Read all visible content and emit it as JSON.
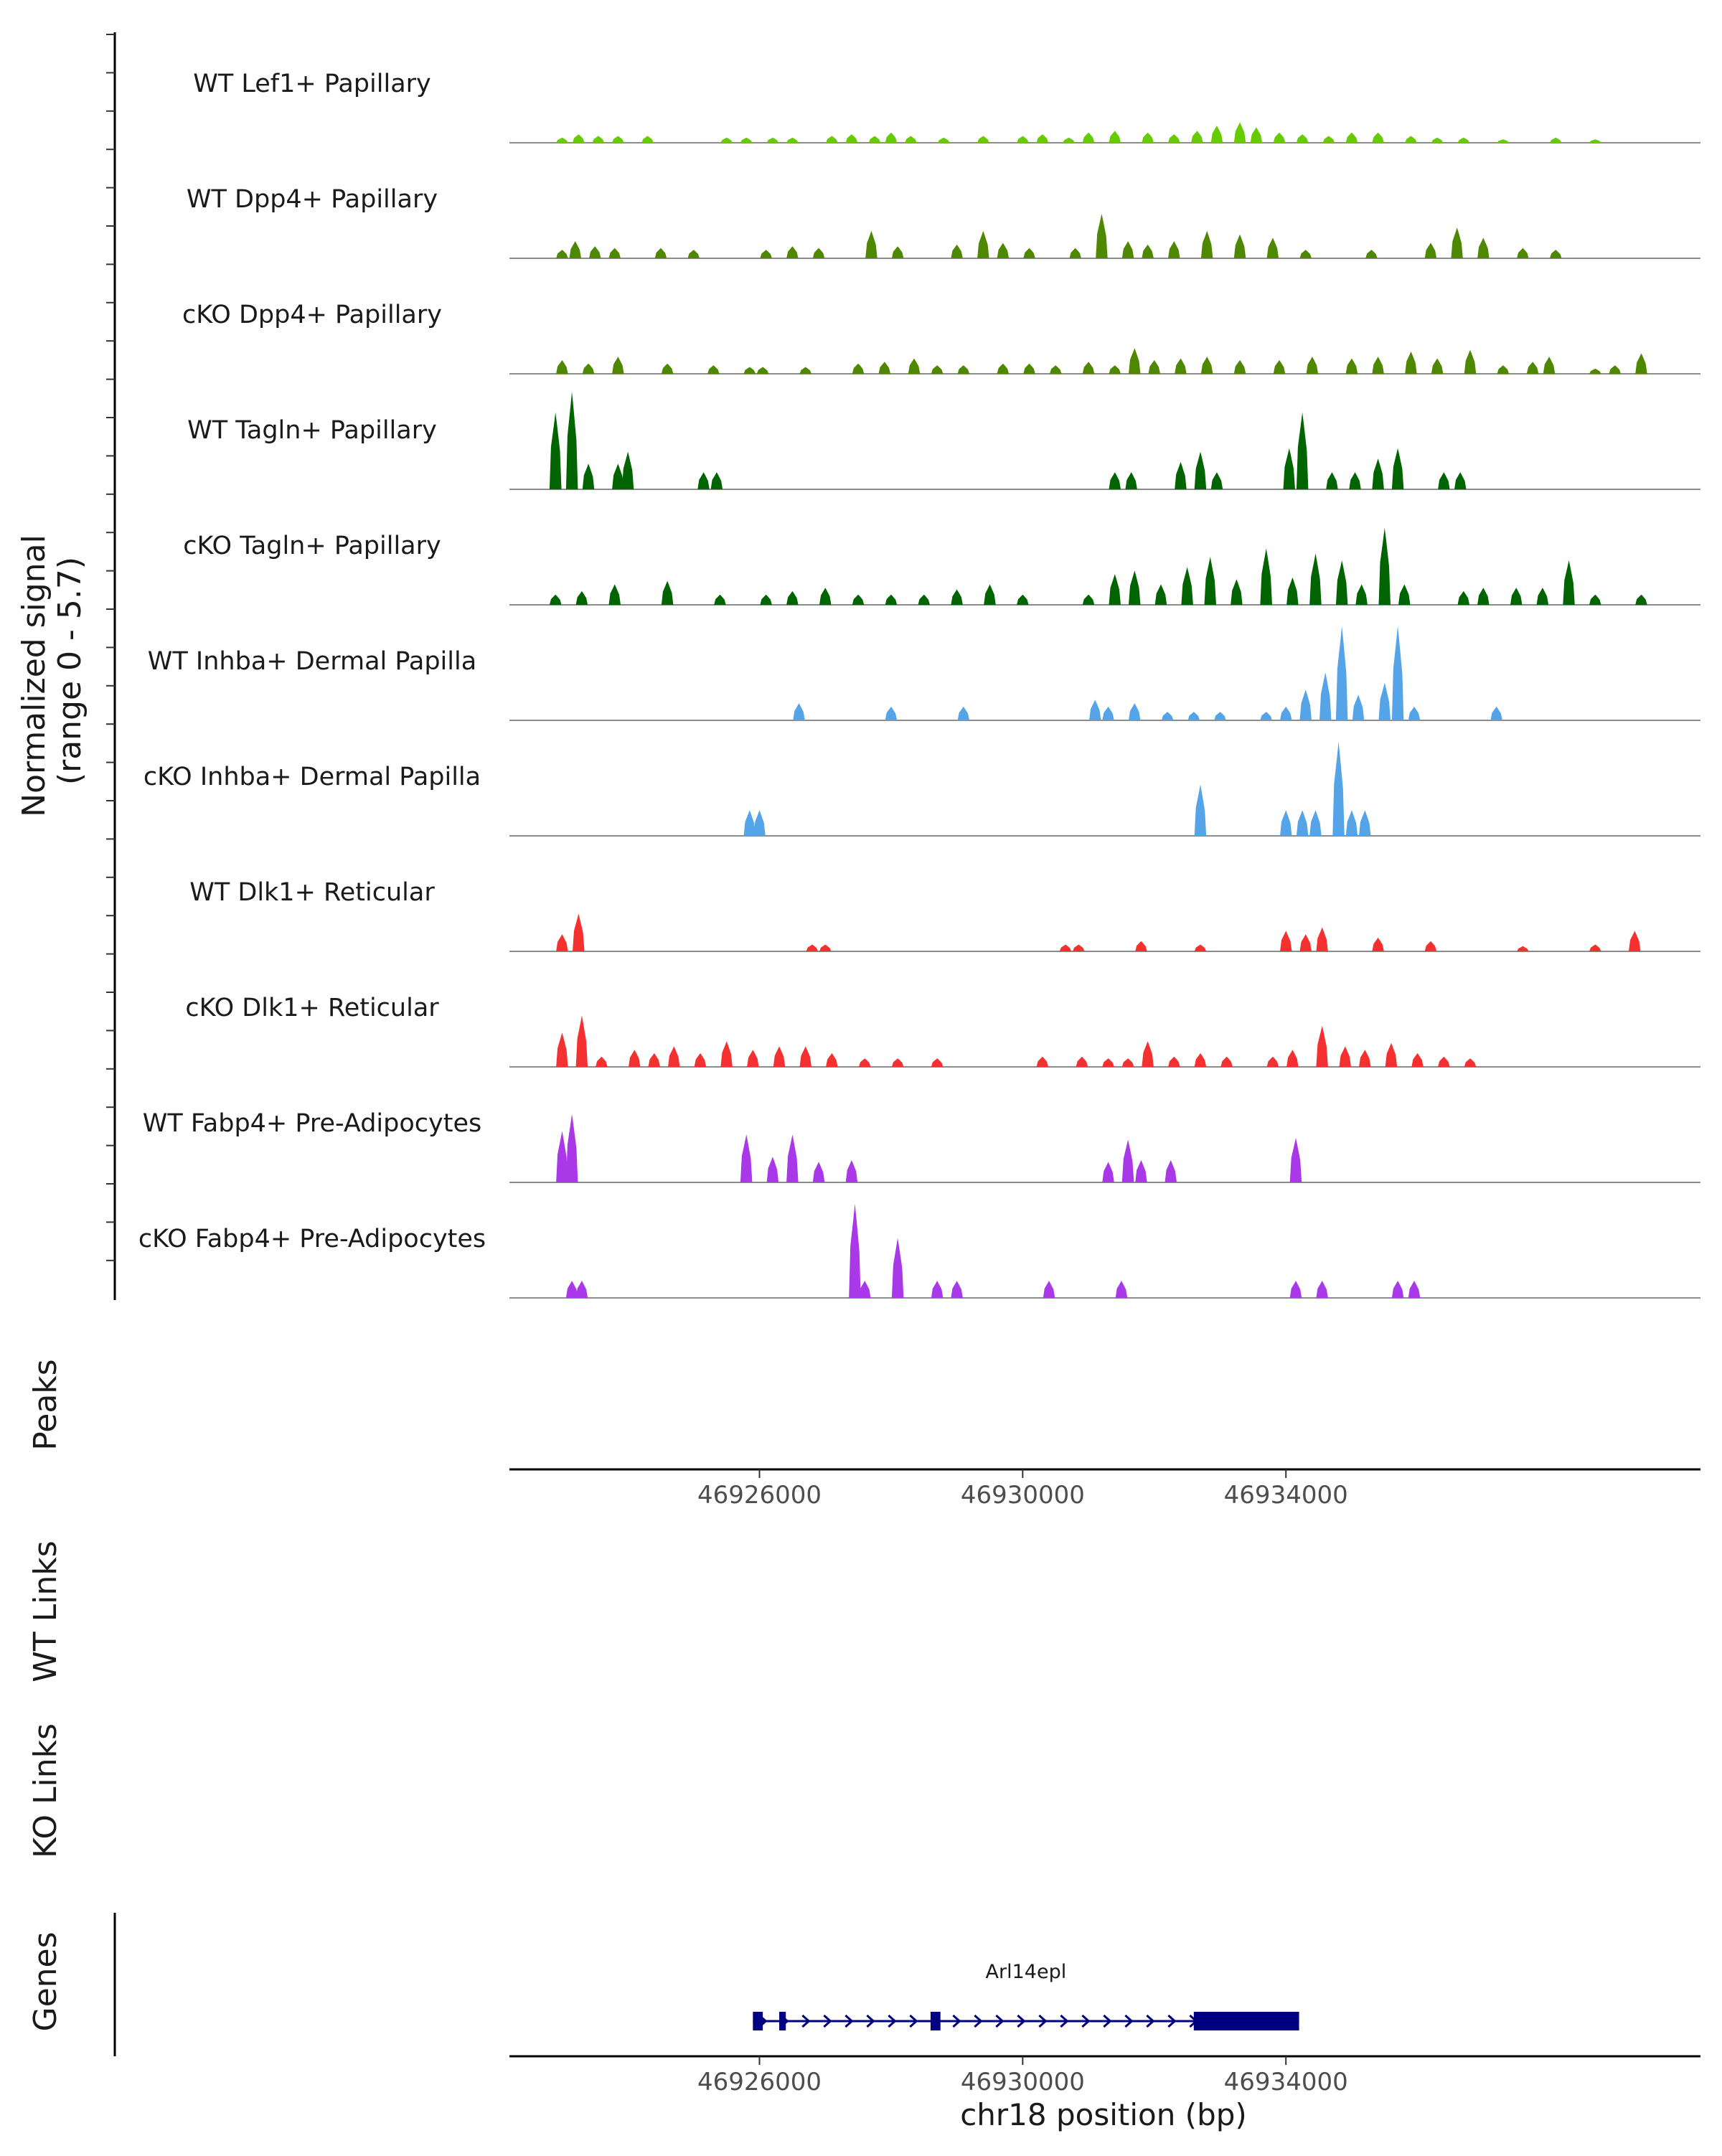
{
  "chart_data": {
    "type": "area",
    "chromosome": "chr18",
    "xlim": [
      46922200,
      46940300
    ],
    "ylim": [
      0,
      5.7
    ],
    "x_ticks": [
      46926000,
      46930000,
      46934000
    ],
    "x_tick_labels": [
      "46926000",
      "46930000",
      "46934000"
    ],
    "xlabel": "chr18 position (bp)",
    "signal_axis_title": "Normalized signal\n(range 0 - 5.7)",
    "side_labels": {
      "peaks": "Peaks",
      "wt_links": "WT Links",
      "ko_links": "KO Links",
      "genes": "Genes"
    },
    "tracks": [
      {
        "name": "WT Lef1+ Papillary",
        "color": "#66CC00",
        "peaks": [
          [
            46923000,
            0.3
          ],
          [
            46923250,
            0.5
          ],
          [
            46923550,
            0.4
          ],
          [
            46923850,
            0.4
          ],
          [
            46924300,
            0.4
          ],
          [
            46925500,
            0.3
          ],
          [
            46925800,
            0.3
          ],
          [
            46926200,
            0.3
          ],
          [
            46926500,
            0.3
          ],
          [
            46927100,
            0.4
          ],
          [
            46927400,
            0.5
          ],
          [
            46927750,
            0.4
          ],
          [
            46928000,
            0.6
          ],
          [
            46928300,
            0.4
          ],
          [
            46928800,
            0.3
          ],
          [
            46929400,
            0.4
          ],
          [
            46930000,
            0.4
          ],
          [
            46930300,
            0.5
          ],
          [
            46930700,
            0.3
          ],
          [
            46931000,
            0.6
          ],
          [
            46931400,
            0.7
          ],
          [
            46931900,
            0.6
          ],
          [
            46932300,
            0.5
          ],
          [
            46932650,
            0.7
          ],
          [
            46932950,
            1.0
          ],
          [
            46933300,
            1.2
          ],
          [
            46933550,
            0.9
          ],
          [
            46933900,
            0.6
          ],
          [
            46934250,
            0.5
          ],
          [
            46934650,
            0.4
          ],
          [
            46935000,
            0.6
          ],
          [
            46935400,
            0.6
          ],
          [
            46935900,
            0.4
          ],
          [
            46936300,
            0.3
          ],
          [
            46936700,
            0.3
          ],
          [
            46937300,
            0.2
          ],
          [
            46938100,
            0.3
          ],
          [
            46938700,
            0.2
          ]
        ]
      },
      {
        "name": "WT Dpp4+ Papillary",
        "color": "#4D8800",
        "peaks": [
          [
            46923000,
            0.5
          ],
          [
            46923200,
            1.0
          ],
          [
            46923500,
            0.7
          ],
          [
            46923800,
            0.6
          ],
          [
            46924500,
            0.6
          ],
          [
            46925000,
            0.5
          ],
          [
            46926100,
            0.5
          ],
          [
            46926500,
            0.7
          ],
          [
            46926900,
            0.6
          ],
          [
            46927700,
            1.6
          ],
          [
            46928100,
            0.7
          ],
          [
            46929000,
            0.8
          ],
          [
            46929400,
            1.6
          ],
          [
            46929700,
            0.9
          ],
          [
            46930100,
            0.6
          ],
          [
            46930800,
            0.6
          ],
          [
            46931200,
            2.6
          ],
          [
            46931600,
            1.0
          ],
          [
            46931900,
            0.8
          ],
          [
            46932300,
            1.0
          ],
          [
            46932800,
            1.6
          ],
          [
            46933300,
            1.4
          ],
          [
            46933800,
            1.2
          ],
          [
            46934300,
            0.5
          ],
          [
            46935300,
            0.5
          ],
          [
            46936200,
            0.9
          ],
          [
            46936600,
            1.8
          ],
          [
            46937000,
            1.2
          ],
          [
            46937600,
            0.6
          ],
          [
            46938100,
            0.5
          ]
        ]
      },
      {
        "name": "cKO Dpp4+ Papillary",
        "color": "#4D8800",
        "peaks": [
          [
            46923000,
            0.8
          ],
          [
            46923400,
            0.6
          ],
          [
            46923850,
            1.0
          ],
          [
            46924600,
            0.6
          ],
          [
            46925300,
            0.5
          ],
          [
            46925850,
            0.4
          ],
          [
            46926050,
            0.4
          ],
          [
            46926700,
            0.4
          ],
          [
            46927500,
            0.6
          ],
          [
            46927900,
            0.7
          ],
          [
            46928350,
            0.9
          ],
          [
            46928700,
            0.5
          ],
          [
            46929100,
            0.5
          ],
          [
            46929700,
            0.6
          ],
          [
            46930100,
            0.6
          ],
          [
            46930500,
            0.5
          ],
          [
            46931000,
            0.7
          ],
          [
            46931400,
            0.5
          ],
          [
            46931700,
            1.5
          ],
          [
            46932000,
            0.8
          ],
          [
            46932400,
            0.9
          ],
          [
            46932800,
            1.0
          ],
          [
            46933300,
            0.8
          ],
          [
            46933900,
            0.8
          ],
          [
            46934400,
            1.0
          ],
          [
            46935000,
            0.9
          ],
          [
            46935400,
            1.0
          ],
          [
            46935900,
            1.3
          ],
          [
            46936300,
            0.9
          ],
          [
            46936800,
            1.4
          ],
          [
            46937300,
            0.5
          ],
          [
            46937750,
            0.7
          ],
          [
            46938000,
            1.0
          ],
          [
            46938700,
            0.3
          ],
          [
            46939000,
            0.5
          ],
          [
            46939400,
            1.2
          ]
        ]
      },
      {
        "name": "WT Tagln+ Papillary",
        "color": "#006400",
        "peaks": [
          [
            46922900,
            4.5
          ],
          [
            46923150,
            5.7
          ],
          [
            46923400,
            1.5
          ],
          [
            46923850,
            1.5
          ],
          [
            46924000,
            2.2
          ],
          [
            46925150,
            1.0
          ],
          [
            46925350,
            1.0
          ],
          [
            46931400,
            1.0
          ],
          [
            46931650,
            1.0
          ],
          [
            46932400,
            1.6
          ],
          [
            46932700,
            2.2
          ],
          [
            46932950,
            1.0
          ],
          [
            46934050,
            2.4
          ],
          [
            46934250,
            4.5
          ],
          [
            46934700,
            1.0
          ],
          [
            46935050,
            1.0
          ],
          [
            46935400,
            1.8
          ],
          [
            46935700,
            2.4
          ],
          [
            46936400,
            1.0
          ],
          [
            46936650,
            1.0
          ]
        ]
      },
      {
        "name": "cKO Tagln+ Papillary",
        "color": "#006400",
        "peaks": [
          [
            46922900,
            0.6
          ],
          [
            46923300,
            0.8
          ],
          [
            46923800,
            1.2
          ],
          [
            46924600,
            1.4
          ],
          [
            46925400,
            0.6
          ],
          [
            46926100,
            0.6
          ],
          [
            46926500,
            0.8
          ],
          [
            46927000,
            1.0
          ],
          [
            46927500,
            0.6
          ],
          [
            46928000,
            0.6
          ],
          [
            46928500,
            0.6
          ],
          [
            46929000,
            0.9
          ],
          [
            46929500,
            1.2
          ],
          [
            46930000,
            0.6
          ],
          [
            46931000,
            0.6
          ],
          [
            46931400,
            1.8
          ],
          [
            46931700,
            2.0
          ],
          [
            46932100,
            1.2
          ],
          [
            46932500,
            2.2
          ],
          [
            46932850,
            2.8
          ],
          [
            46933250,
            1.5
          ],
          [
            46933700,
            3.3
          ],
          [
            46934100,
            1.6
          ],
          [
            46934450,
            3.0
          ],
          [
            46934850,
            2.6
          ],
          [
            46935150,
            1.2
          ],
          [
            46935500,
            4.5
          ],
          [
            46935800,
            1.2
          ],
          [
            46936700,
            0.8
          ],
          [
            46937000,
            1.0
          ],
          [
            46937500,
            1.0
          ],
          [
            46937900,
            1.0
          ],
          [
            46938300,
            2.6
          ],
          [
            46938700,
            0.6
          ],
          [
            46939400,
            0.6
          ]
        ]
      },
      {
        "name": "WT Inhba+ Dermal Papilla",
        "color": "#56A4E8",
        "peaks": [
          [
            46926600,
            1.0
          ],
          [
            46928000,
            0.8
          ],
          [
            46929100,
            0.8
          ],
          [
            46931100,
            1.2
          ],
          [
            46931300,
            0.8
          ],
          [
            46931700,
            1.0
          ],
          [
            46932200,
            0.5
          ],
          [
            46932600,
            0.5
          ],
          [
            46933000,
            0.5
          ],
          [
            46933700,
            0.5
          ],
          [
            46934000,
            0.8
          ],
          [
            46934300,
            1.8
          ],
          [
            46934600,
            2.8
          ],
          [
            46934850,
            5.5
          ],
          [
            46935100,
            1.5
          ],
          [
            46935500,
            2.2
          ],
          [
            46935700,
            5.5
          ],
          [
            46935950,
            0.8
          ],
          [
            46937200,
            0.8
          ]
        ]
      },
      {
        "name": "cKO Inhba+ Dermal Papilla",
        "color": "#56A4E8",
        "peaks": [
          [
            46925850,
            1.5
          ],
          [
            46926000,
            1.5
          ],
          [
            46932700,
            3.0
          ],
          [
            46934000,
            1.5
          ],
          [
            46934250,
            1.5
          ],
          [
            46934450,
            1.5
          ],
          [
            46934800,
            5.5
          ],
          [
            46935000,
            1.5
          ],
          [
            46935200,
            1.5
          ]
        ]
      },
      {
        "name": "WT Dlk1+ Reticular",
        "color": "#F43030",
        "peaks": [
          [
            46923000,
            1.0
          ],
          [
            46923250,
            2.2
          ],
          [
            46926800,
            0.4
          ],
          [
            46927000,
            0.4
          ],
          [
            46930650,
            0.4
          ],
          [
            46930850,
            0.4
          ],
          [
            46931800,
            0.6
          ],
          [
            46932700,
            0.4
          ],
          [
            46934000,
            1.2
          ],
          [
            46934300,
            1.0
          ],
          [
            46934550,
            1.4
          ],
          [
            46935400,
            0.8
          ],
          [
            46936200,
            0.6
          ],
          [
            46937600,
            0.3
          ],
          [
            46938700,
            0.4
          ],
          [
            46939300,
            1.2
          ]
        ]
      },
      {
        "name": "cKO Dlk1+ Reticular",
        "color": "#F43030",
        "peaks": [
          [
            46923000,
            2.0
          ],
          [
            46923300,
            3.0
          ],
          [
            46923600,
            0.6
          ],
          [
            46924100,
            1.0
          ],
          [
            46924400,
            0.8
          ],
          [
            46924700,
            1.2
          ],
          [
            46925100,
            0.8
          ],
          [
            46925500,
            1.5
          ],
          [
            46925900,
            1.0
          ],
          [
            46926300,
            1.2
          ],
          [
            46926700,
            1.2
          ],
          [
            46927100,
            0.8
          ],
          [
            46927600,
            0.5
          ],
          [
            46928100,
            0.5
          ],
          [
            46928700,
            0.5
          ],
          [
            46930300,
            0.6
          ],
          [
            46930900,
            0.6
          ],
          [
            46931300,
            0.5
          ],
          [
            46931600,
            0.5
          ],
          [
            46931900,
            1.5
          ],
          [
            46932300,
            0.6
          ],
          [
            46932700,
            0.8
          ],
          [
            46933100,
            0.6
          ],
          [
            46933800,
            0.6
          ],
          [
            46934100,
            1.0
          ],
          [
            46934550,
            2.4
          ],
          [
            46934900,
            1.2
          ],
          [
            46935200,
            1.0
          ],
          [
            46935600,
            1.4
          ],
          [
            46936000,
            0.8
          ],
          [
            46936400,
            0.6
          ],
          [
            46936800,
            0.5
          ]
        ]
      },
      {
        "name": "WT Fabp4+ Pre-Adipocytes",
        "color": "#A938E8",
        "peaks": [
          [
            46923000,
            3.0
          ],
          [
            46923150,
            4.0
          ],
          [
            46925800,
            2.8
          ],
          [
            46926200,
            1.5
          ],
          [
            46926500,
            2.8
          ],
          [
            46926900,
            1.2
          ],
          [
            46927400,
            1.3
          ],
          [
            46931300,
            1.2
          ],
          [
            46931600,
            2.5
          ],
          [
            46931800,
            1.3
          ],
          [
            46932250,
            1.3
          ],
          [
            46934150,
            2.6
          ]
        ]
      },
      {
        "name": "cKO Fabp4+ Pre-Adipocytes",
        "color": "#A938E8",
        "peaks": [
          [
            46923150,
            1.0
          ],
          [
            46923300,
            1.0
          ],
          [
            46927450,
            5.5
          ],
          [
            46927600,
            1.0
          ],
          [
            46928100,
            3.5
          ],
          [
            46928700,
            1.0
          ],
          [
            46929000,
            1.0
          ],
          [
            46930400,
            1.0
          ],
          [
            46931500,
            1.0
          ],
          [
            46934150,
            1.0
          ],
          [
            46934550,
            1.0
          ],
          [
            46935700,
            1.0
          ],
          [
            46935950,
            1.0
          ]
        ]
      }
    ],
    "gene": {
      "name": "Arl14epl",
      "chrom_start": 46925900,
      "chrom_end": 46934200,
      "strand": "+",
      "exons": [
        [
          46925900,
          46926050
        ],
        [
          46926300,
          46926400
        ],
        [
          46928600,
          46928750
        ],
        [
          46932600,
          46934200
        ]
      ],
      "color": "#000080"
    }
  }
}
